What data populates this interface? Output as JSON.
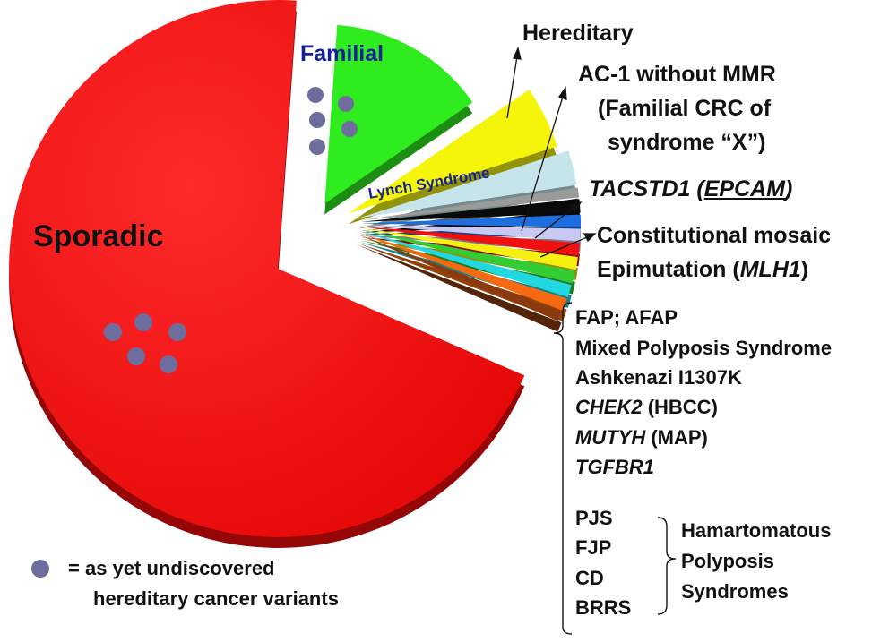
{
  "chart_data": {
    "type": "pie",
    "style": "3d-exploded",
    "slices": [
      {
        "label": "Sporadic",
        "percent": 68,
        "color": "#f80a0a",
        "shown_label": true
      },
      {
        "label": "Familial",
        "percent": 14,
        "color": "#2fec1f",
        "shown_label": true
      },
      {
        "label": "Lynch Syndrome",
        "percent": 4.5,
        "color": "#f5f50c",
        "shown_label": true
      },
      {
        "label": "AC-1 without MMR",
        "percent": 2.5,
        "color": "#c5e5ea"
      },
      {
        "label": "TACSTD1 (EPCAM)",
        "percent": 0.7,
        "color": "#9a9a9a"
      },
      {
        "label": "Constitutional mosaic Epimutation (MLH1)",
        "percent": 1.0,
        "color": "#0a0a0a"
      },
      {
        "label": "",
        "percent": 0.9,
        "color": "#1f6ee0"
      },
      {
        "label": "",
        "percent": 0.9,
        "color": "#c8c8f0"
      },
      {
        "label": "",
        "percent": 0.9,
        "color": "#f01010"
      },
      {
        "label": "",
        "percent": 0.9,
        "color": "#f5f010"
      },
      {
        "label": "",
        "percent": 0.9,
        "color": "#33cc33"
      },
      {
        "label": "",
        "percent": 0.9,
        "color": "#22d8e0"
      },
      {
        "label": "",
        "percent": 0.9,
        "color": "#f56a10"
      },
      {
        "label": "",
        "percent": 0.7,
        "color": "#8b3a10"
      }
    ],
    "legend": {
      "marker_color": "#6e6e9e",
      "text_line1": "= as yet undiscovered",
      "text_line2": "hereditary cancer variants"
    }
  },
  "labels": {
    "sporadic": "Sporadic",
    "familial": "Familial",
    "lynch": "Lynch Syndrome",
    "hereditary": "Hereditary",
    "ac1_line1": "AC-1 without MMR",
    "ac1_line2": "(Familial CRC of",
    "ac1_line3": "syndrome “X”)",
    "tacstd1": "TACSTD1",
    "epcam": "EPCAM",
    "mosaic_line1": "Constitutional mosaic",
    "mosaic_line2": "Epimutation (",
    "mlh1": "MLH1",
    "paren_close": ")",
    "open_paren": "(",
    "list": {
      "fap": "FAP; AFAP",
      "mixed": "Mixed Polyposis Syndrome",
      "ashkenazi": "Ashkenazi I1307K",
      "chek2": "CHEK2",
      "chek2_rest": " (HBCC)",
      "mutyh": "MUTYH",
      "mutyh_rest": " (MAP)",
      "tgfbr1": "TGFBR1"
    },
    "hamartomatous": {
      "items": [
        "PJS",
        "FJP",
        "CD",
        "BRRS"
      ],
      "group_line1": "Hamartomatous",
      "group_line2": "Polyposis",
      "group_line3": "Syndromes"
    }
  }
}
